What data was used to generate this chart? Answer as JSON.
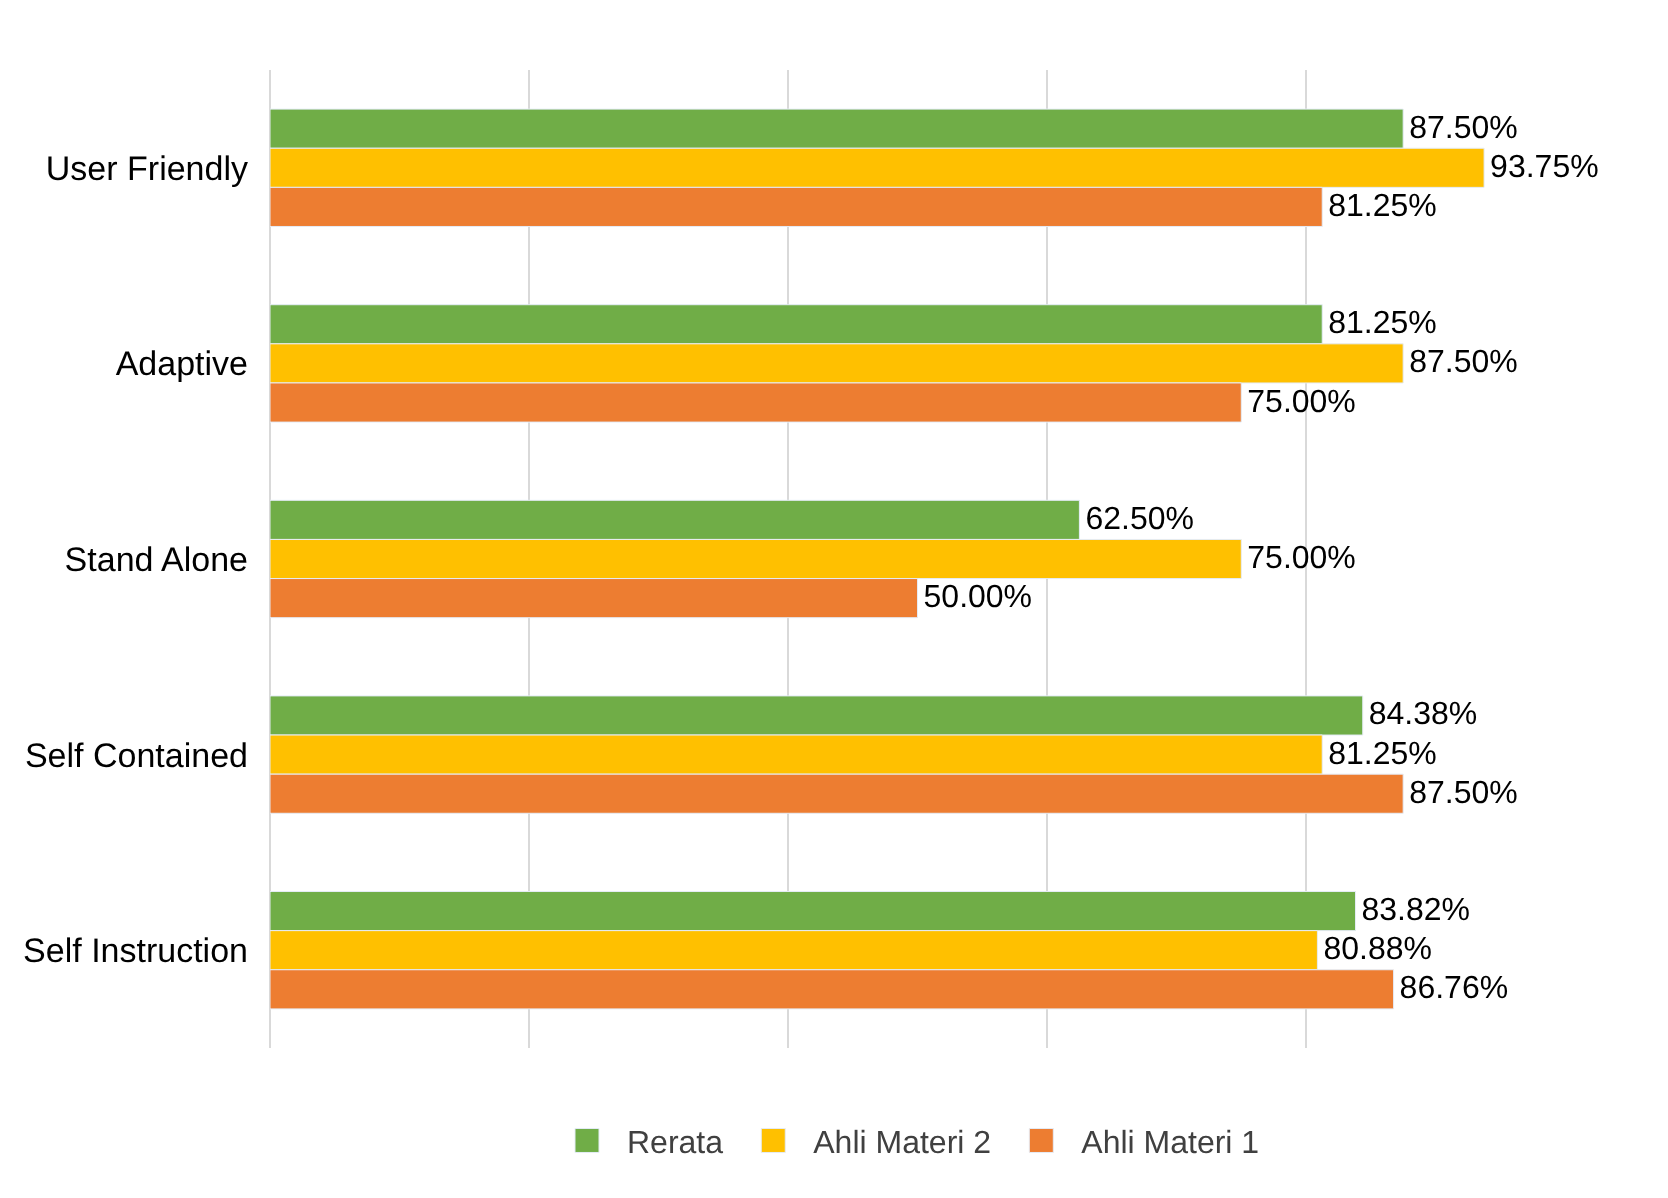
{
  "chart_data": {
    "type": "bar",
    "orientation": "horizontal",
    "categories": [
      "User Friendly",
      "Adaptive",
      "Stand Alone",
      "Self Contained",
      "Self Instruction"
    ],
    "series": [
      {
        "name": "Rerata",
        "color": "#70ad47",
        "values": [
          87.5,
          81.25,
          62.5,
          84.38,
          83.82
        ],
        "value_labels": [
          "87.50%",
          "81.25%",
          "62.50%",
          "84.38%",
          "83.82%"
        ]
      },
      {
        "name": "Ahli Materi 2",
        "color": "#ffc000",
        "values": [
          93.75,
          87.5,
          75,
          81.25,
          80.88
        ],
        "value_labels": [
          "93.75%",
          "87.50%",
          "75.00%",
          "81.25%",
          "80.88%"
        ]
      },
      {
        "name": "Ahli Materi 1",
        "color": "#ed7d31",
        "values": [
          81.25,
          75,
          50,
          87.5,
          86.76
        ],
        "value_labels": [
          "81.25%",
          "75.00%",
          "50.00%",
          "87.50%",
          "86.76%"
        ]
      }
    ],
    "grid": "x",
    "legend": "bottom",
    "tick_labels": "y"
  }
}
